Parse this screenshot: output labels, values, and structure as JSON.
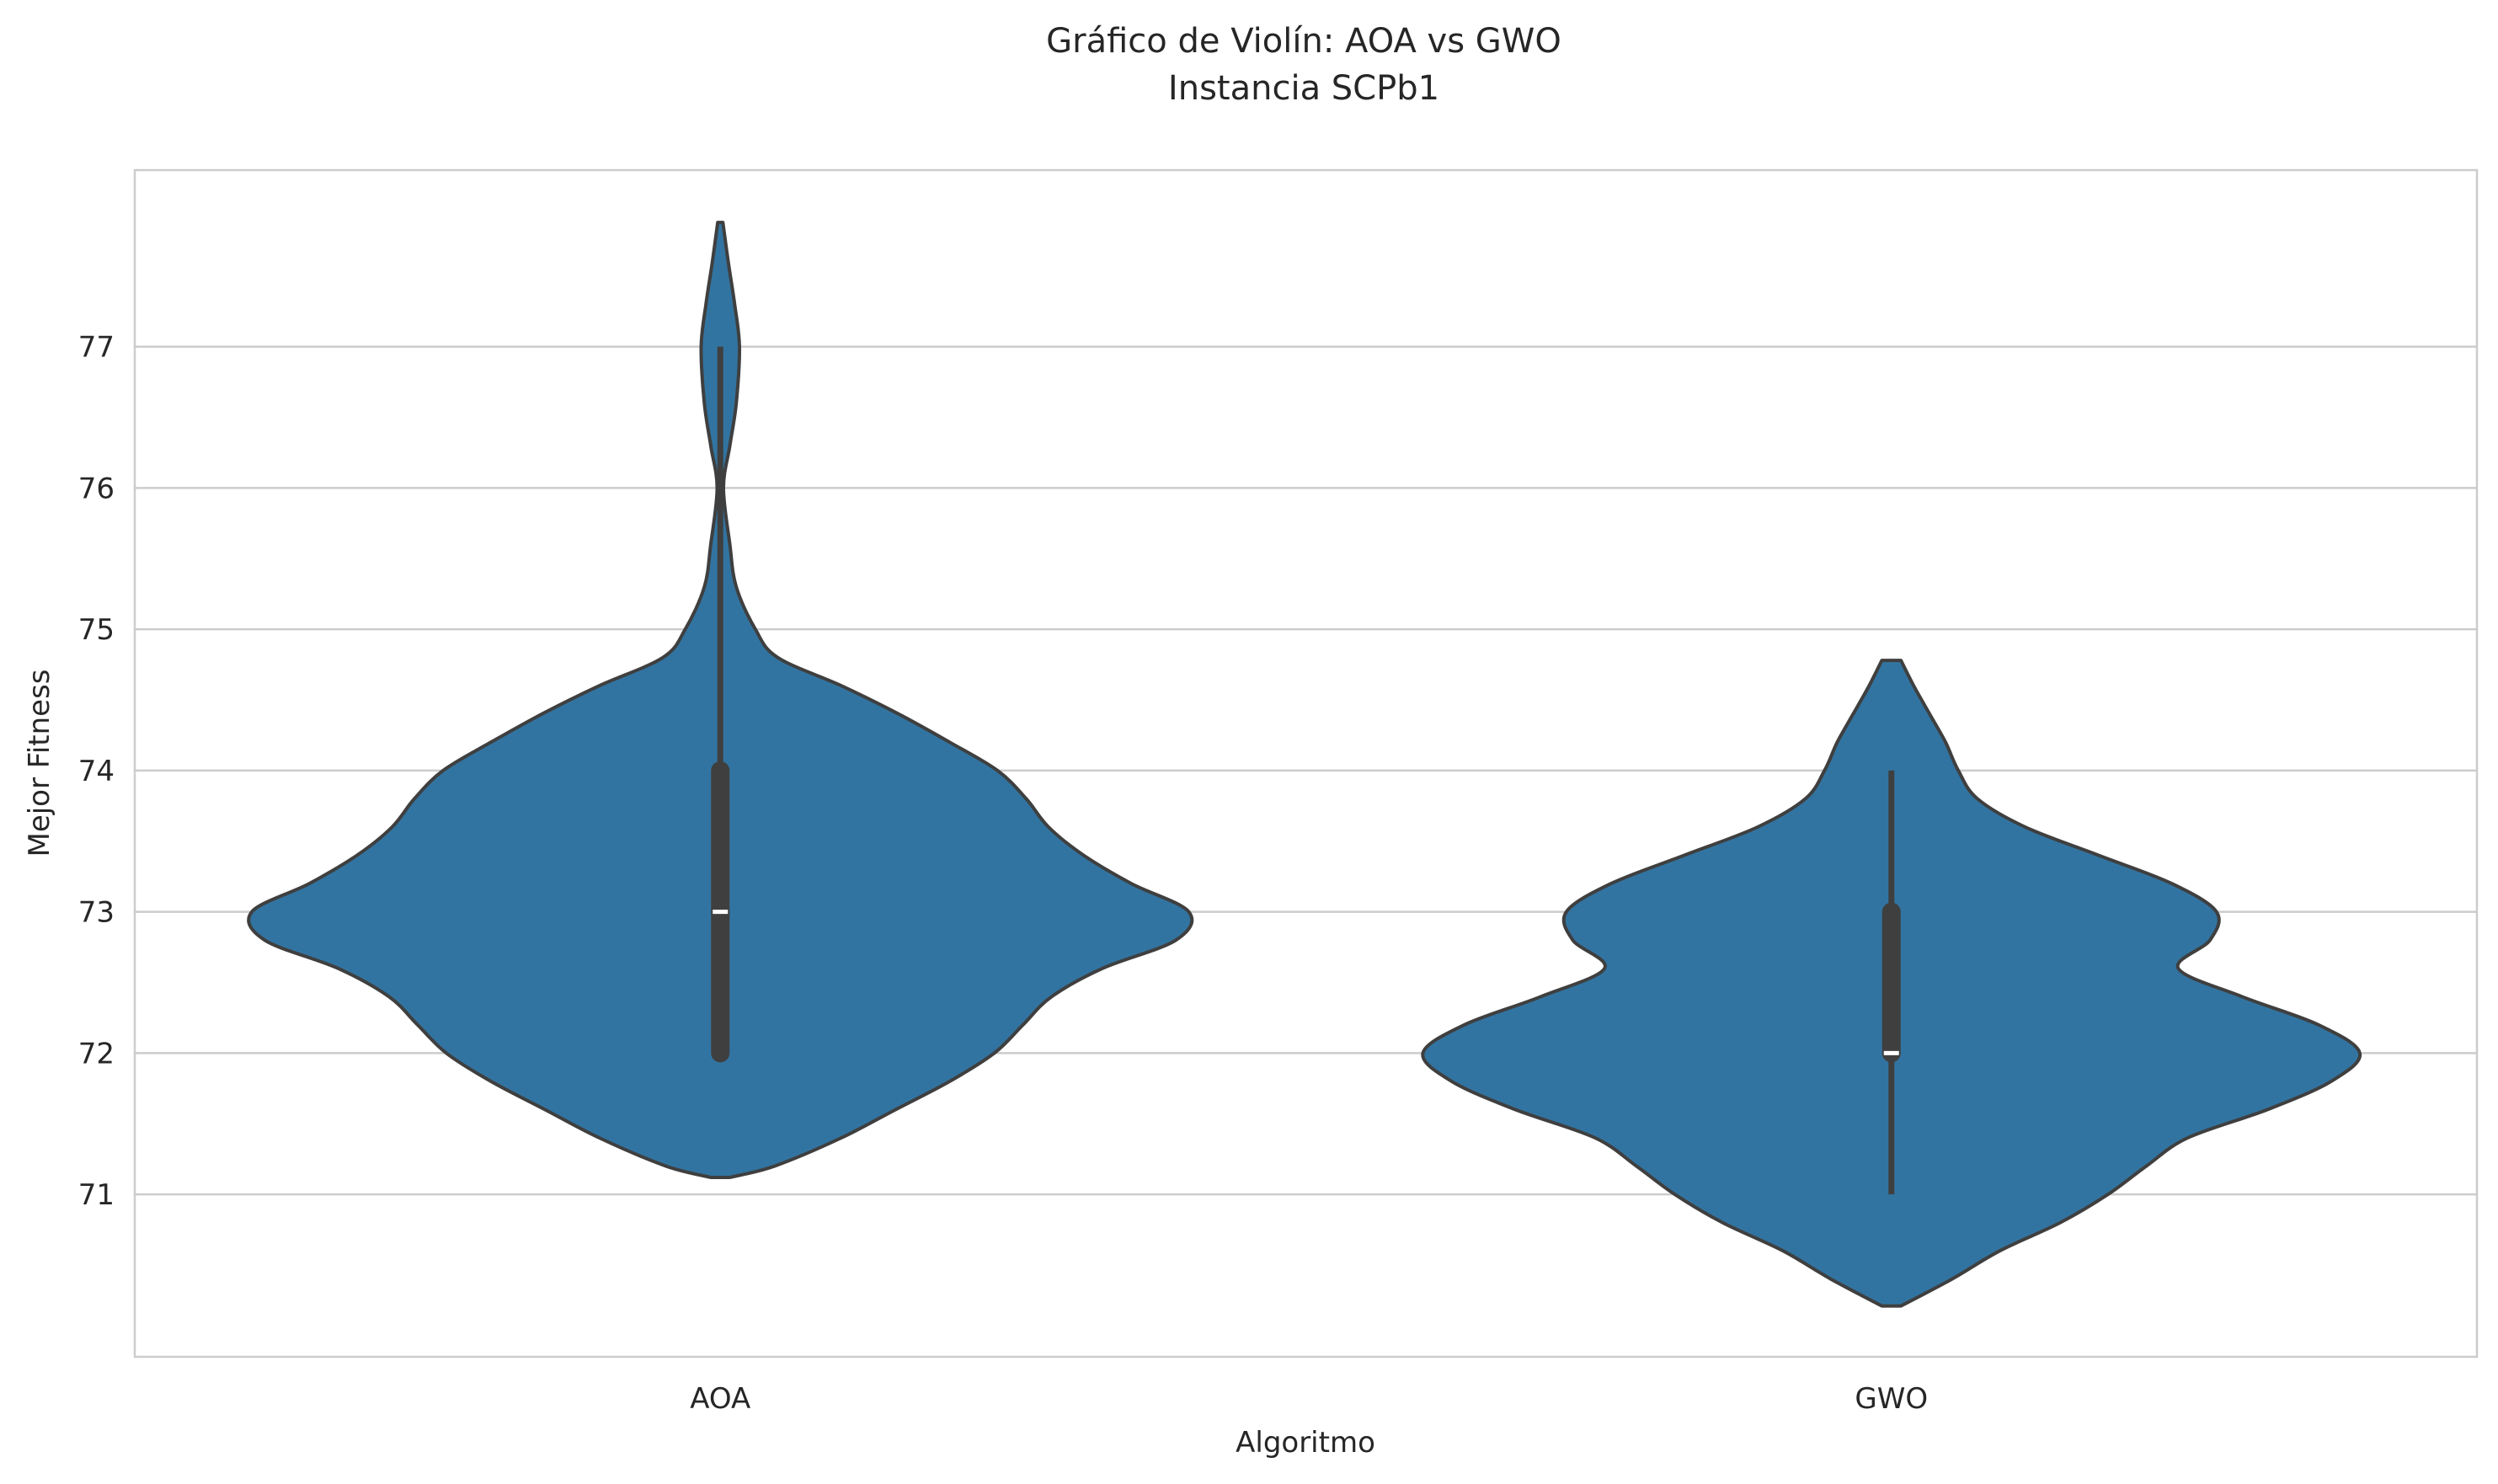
{
  "chart_data": {
    "type": "violin",
    "title": "Gráfico de Violín: AOA vs GWO",
    "subtitle": "Instancia SCPb1",
    "xlabel": "Algoritmo",
    "ylabel": "Mejor Fitness",
    "ylim": [
      69.85,
      78.25
    ],
    "yticks": [
      71,
      72,
      73,
      74,
      75,
      76,
      77
    ],
    "grid": true,
    "colors": {
      "fill": "#3274a1",
      "edge": "#3f3f3f",
      "box": "#3f3f3f",
      "median": "#ffffff",
      "grid": "#cccccc",
      "spine": "#cccccc"
    },
    "categories": [
      "AOA",
      "GWO"
    ],
    "series": [
      {
        "category": "AOA",
        "min": 72,
        "q1": 72,
        "median": 73,
        "q3": 74,
        "max": 77,
        "density": [
          [
            71.12,
            0.03
          ],
          [
            71.2,
            0.17
          ],
          [
            71.4,
            0.38
          ],
          [
            71.6,
            0.55
          ],
          [
            71.8,
            0.72
          ],
          [
            72.0,
            0.86
          ],
          [
            72.2,
            0.95
          ],
          [
            72.4,
            1.04
          ],
          [
            72.6,
            1.2
          ],
          [
            72.8,
            1.43
          ],
          [
            73.0,
            1.47
          ],
          [
            73.2,
            1.29
          ],
          [
            73.4,
            1.14
          ],
          [
            73.6,
            1.03
          ],
          [
            73.8,
            0.96
          ],
          [
            74.0,
            0.87
          ],
          [
            74.2,
            0.72
          ],
          [
            74.4,
            0.56
          ],
          [
            74.6,
            0.38
          ],
          [
            74.8,
            0.18
          ],
          [
            75.0,
            0.11
          ],
          [
            75.3,
            0.05
          ],
          [
            75.6,
            0.03
          ],
          [
            76.0,
            0.01
          ],
          [
            76.3,
            0.03
          ],
          [
            76.6,
            0.05
          ],
          [
            77.0,
            0.06
          ],
          [
            77.3,
            0.045
          ],
          [
            77.6,
            0.025
          ],
          [
            77.88,
            0.008
          ]
        ]
      },
      {
        "category": "GWO",
        "min": 71,
        "q1": 72,
        "median": 72,
        "q3": 73,
        "max": 74,
        "density": [
          [
            70.21,
            0.03
          ],
          [
            70.4,
            0.19
          ],
          [
            70.6,
            0.34
          ],
          [
            70.8,
            0.53
          ],
          [
            71.0,
            0.68
          ],
          [
            71.2,
            0.8
          ],
          [
            71.4,
            0.93
          ],
          [
            71.6,
            1.18
          ],
          [
            71.8,
            1.38
          ],
          [
            72.0,
            1.47
          ],
          [
            72.2,
            1.34
          ],
          [
            72.4,
            1.1
          ],
          [
            72.6,
            0.9
          ],
          [
            72.8,
            1.0
          ],
          [
            73.0,
            1.02
          ],
          [
            73.2,
            0.88
          ],
          [
            73.4,
            0.65
          ],
          [
            73.6,
            0.42
          ],
          [
            73.8,
            0.27
          ],
          [
            74.0,
            0.21
          ],
          [
            74.2,
            0.17
          ],
          [
            74.4,
            0.12
          ],
          [
            74.6,
            0.07
          ],
          [
            74.78,
            0.03
          ]
        ]
      }
    ]
  }
}
